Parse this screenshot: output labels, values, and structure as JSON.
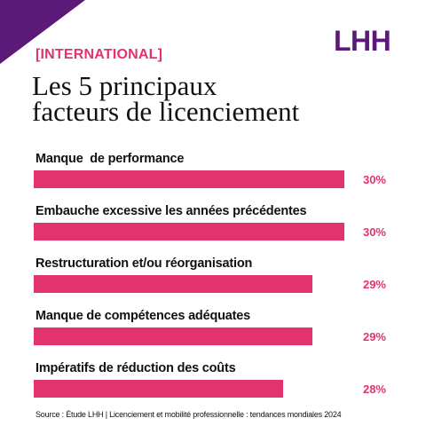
{
  "brand": {
    "logo": "LHH",
    "accent_color": "#e2336f",
    "brand_color": "#5b1a78"
  },
  "header": {
    "tag": "[INTERNATIONAL]",
    "title_line1": "Les 5 principaux",
    "title_line2": "facteurs de licenciement"
  },
  "chart_data": {
    "type": "bar",
    "orientation": "horizontal",
    "categories": [
      "Manque  de performance",
      "Embauche excessive les années précédentes",
      "Restructuration et/ou réorganisation",
      "Manque de compétences adéquates",
      "Impératifs de réduction des coûts"
    ],
    "values": [
      30,
      30,
      29,
      29,
      28
    ],
    "value_labels": [
      "30%",
      "30%",
      "29%",
      "29%",
      "28%"
    ],
    "unit": "%",
    "bar_color": "#e2336f"
  },
  "footer": {
    "source": "Source : Étude LHH |  Licenciement et mobilité professionnelle : tendances mondiales 2024"
  }
}
